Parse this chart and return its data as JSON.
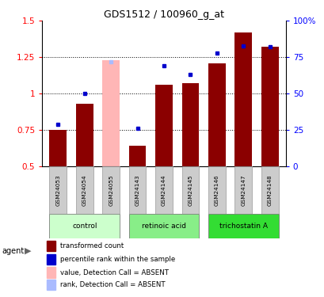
{
  "title": "GDS1512 / 100960_g_at",
  "samples": [
    "GSM24053",
    "GSM24054",
    "GSM24055",
    "GSM24143",
    "GSM24144",
    "GSM24145",
    "GSM24146",
    "GSM24147",
    "GSM24148"
  ],
  "bar_values": [
    0.75,
    0.93,
    1.23,
    0.64,
    1.06,
    1.07,
    1.21,
    1.42,
    1.32
  ],
  "bar_colors": [
    "#8B0000",
    "#8B0000",
    "#FFB6B6",
    "#8B0000",
    "#8B0000",
    "#8B0000",
    "#8B0000",
    "#8B0000",
    "#8B0000"
  ],
  "dot_values": [
    0.79,
    1.0,
    1.22,
    0.76,
    1.19,
    1.13,
    1.28,
    1.33,
    1.32
  ],
  "dot_colors": [
    "#0000CC",
    "#0000CC",
    "#AABBFF",
    "#0000CC",
    "#0000CC",
    "#0000CC",
    "#0000CC",
    "#0000CC",
    "#0000CC"
  ],
  "ylim_left": [
    0.5,
    1.5
  ],
  "ylim_right": [
    0,
    100
  ],
  "yticks_left": [
    0.5,
    0.75,
    1.0,
    1.25,
    1.5
  ],
  "ytick_labels_left": [
    "0.5",
    "0.75",
    "1",
    "1.25",
    "1.5"
  ],
  "yticks_right": [
    0,
    25,
    50,
    75,
    100
  ],
  "ytick_labels_right": [
    "0",
    "25",
    "50",
    "75",
    "100%"
  ],
  "hlines": [
    0.75,
    1.0,
    1.25
  ],
  "groups": [
    {
      "label": "control",
      "indices": [
        0,
        1,
        2
      ],
      "color": "#CCFFCC"
    },
    {
      "label": "retinoic acid",
      "indices": [
        3,
        4,
        5
      ],
      "color": "#88EE88"
    },
    {
      "label": "trichostatin A",
      "indices": [
        6,
        7,
        8
      ],
      "color": "#33DD33"
    }
  ],
  "legend_items": [
    {
      "label": "transformed count",
      "color": "#8B0000"
    },
    {
      "label": "percentile rank within the sample",
      "color": "#0000CC"
    },
    {
      "label": "value, Detection Call = ABSENT",
      "color": "#FFB6B6"
    },
    {
      "label": "rank, Detection Call = ABSENT",
      "color": "#AABBFF"
    }
  ],
  "bar_width": 0.65,
  "agent_label": "agent",
  "sample_box_color": "#CCCCCC",
  "sample_box_edge": "#999999"
}
